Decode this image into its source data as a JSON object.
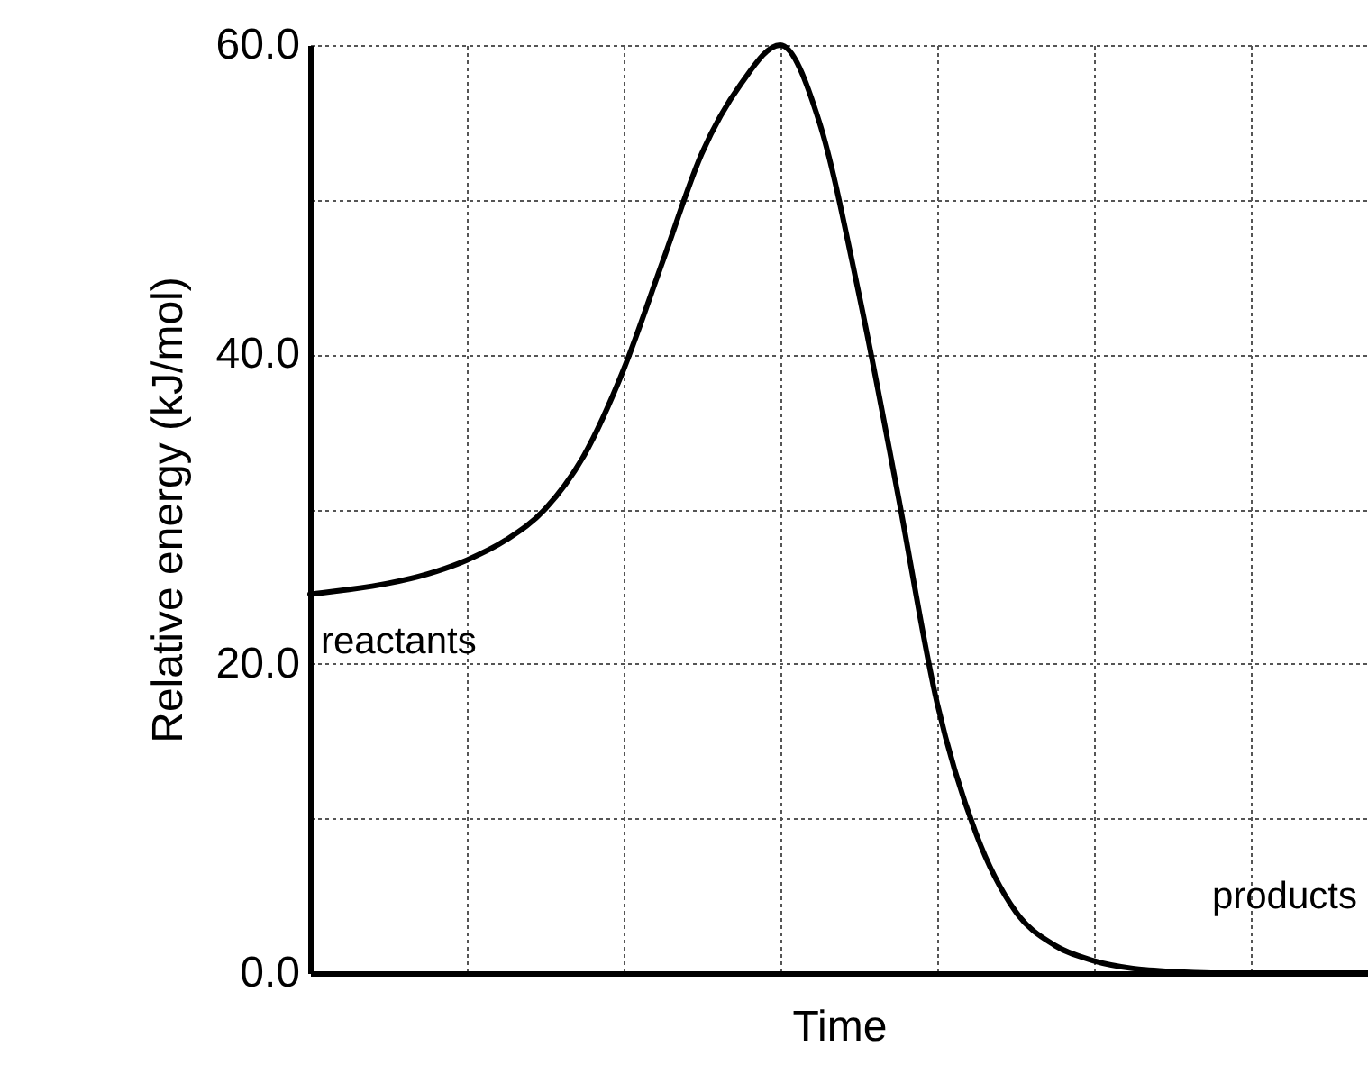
{
  "chart_data": {
    "type": "line",
    "xlabel": "Time",
    "ylabel": "Relative energy  (kJ/mol)",
    "categories": [
      null,
      null,
      null,
      null,
      null,
      null,
      null,
      null,
      null,
      null,
      null,
      null,
      null,
      null,
      null,
      null,
      null,
      null,
      null,
      null,
      null,
      null,
      null,
      null,
      null,
      null,
      null,
      null
    ],
    "series": [
      {
        "color": "#000000",
        "values": [
          24.5,
          24.8,
          25.2,
          25.8,
          26.7,
          28,
          30,
          33.5,
          39,
          46,
          53,
          57.5,
          60,
          55,
          44,
          31,
          17.5,
          9,
          4,
          1.8,
          0.8,
          0.3,
          0.1,
          0,
          0,
          0,
          0,
          0
        ]
      }
    ],
    "ylim": [
      0,
      60
    ],
    "yticks": [
      {
        "value": 0,
        "label": "0.0"
      },
      {
        "value": 10,
        "label": null
      },
      {
        "value": 20,
        "label": "20.0"
      },
      {
        "value": 30,
        "label": null
      },
      {
        "value": 40,
        "label": "40.0"
      },
      {
        "value": 50,
        "label": null
      },
      {
        "value": 60,
        "label": "60.0"
      }
    ],
    "grid": true,
    "marker": "none",
    "line_style": "solid",
    "tick_labels": "y",
    "annotations": [
      "reactants",
      "products"
    ]
  }
}
